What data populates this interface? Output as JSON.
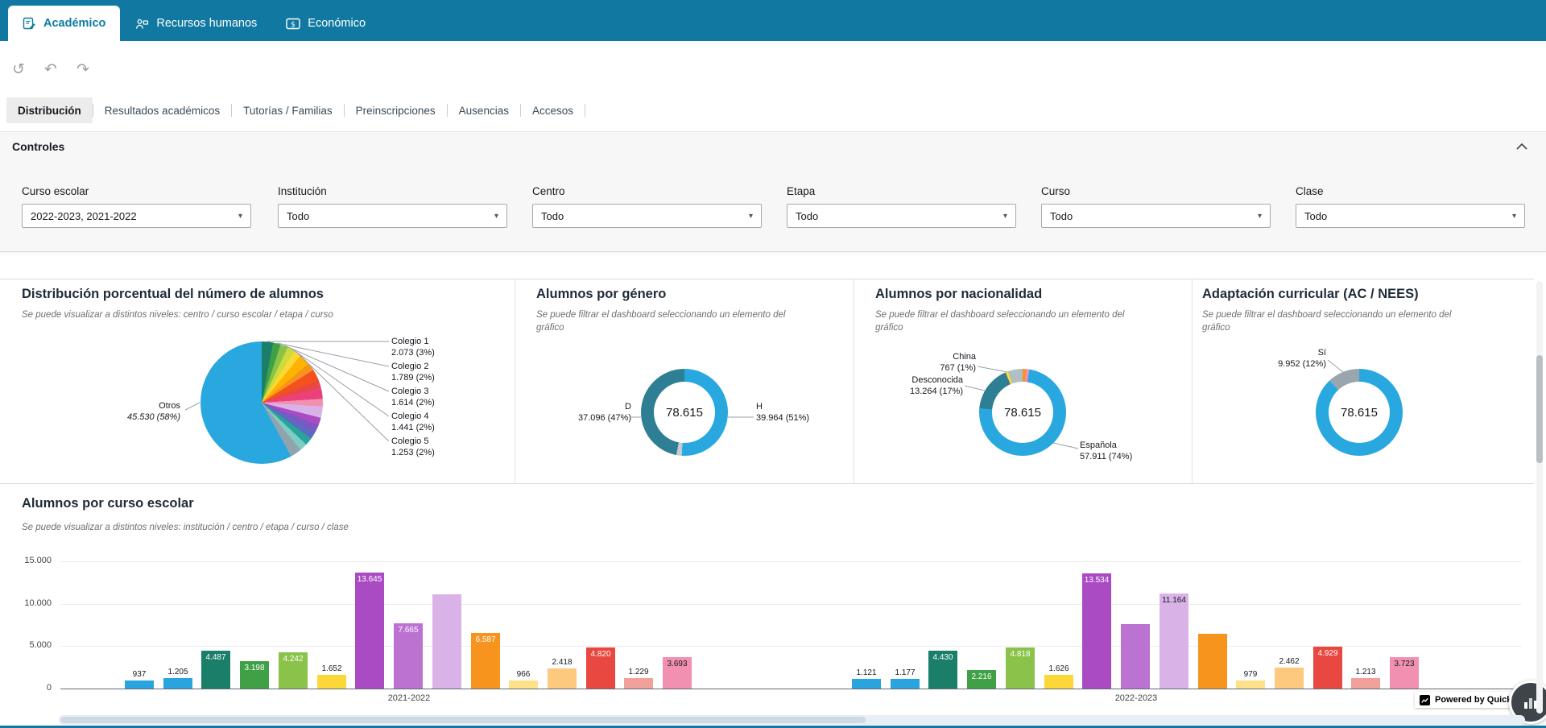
{
  "topbar": {
    "tabs": [
      {
        "label": "Académico",
        "active": true
      },
      {
        "label": "Recursos humanos",
        "active": false
      },
      {
        "label": "Económico",
        "active": false
      }
    ]
  },
  "sheet_tabs": [
    {
      "label": "Distribución",
      "active": true
    },
    {
      "label": "Resultados académicos",
      "active": false
    },
    {
      "label": "Tutorías / Familias",
      "active": false
    },
    {
      "label": "Preinscripciones",
      "active": false
    },
    {
      "label": "Ausencias",
      "active": false
    },
    {
      "label": "Accesos",
      "active": false
    }
  ],
  "controls": {
    "title": "Controles",
    "filters": [
      {
        "label": "Curso escolar",
        "value": "2022-2023, 2021-2022"
      },
      {
        "label": "Institución",
        "value": "Todo"
      },
      {
        "label": "Centro",
        "value": "Todo"
      },
      {
        "label": "Etapa",
        "value": "Todo"
      },
      {
        "label": "Curso",
        "value": "Todo"
      },
      {
        "label": "Clase",
        "value": "Todo"
      }
    ]
  },
  "footer": {
    "powered_by": "Powered by QuickSight"
  },
  "chart_data": [
    {
      "type": "pie",
      "title": "Distribución porcentual del número de alumnos",
      "subtitle": "Se puede visualizar a distintos niveles: centro / curso escolar / etapa / curso",
      "segments": [
        {
          "name": "Colegio 1",
          "value": 2073,
          "pct": 3,
          "display": "2.073 (3%)",
          "color": "#1B7E68"
        },
        {
          "name": "Colegio 2",
          "value": 1789,
          "pct": 2,
          "display": "1.789 (2%)",
          "color": "#3FA045"
        },
        {
          "name": "Colegio 3",
          "value": 1614,
          "pct": 2,
          "display": "1.614 (2%)",
          "color": "#8BC34A"
        },
        {
          "name": "Colegio 4",
          "value": 1441,
          "pct": 2,
          "display": "1.441 (2%)",
          "color": "#CDDC39"
        },
        {
          "name": "Colegio 5",
          "value": 1253,
          "pct": 2,
          "display": "1.253 (2%)",
          "color": "#FBD737"
        },
        {
          "pct": 3,
          "color": "#FFB300"
        },
        {
          "pct": 2,
          "color": "#F7941E"
        },
        {
          "pct": 3,
          "color": "#F4511E"
        },
        {
          "pct": 2,
          "color": "#E8483F"
        },
        {
          "pct": 3,
          "color": "#EC407A"
        },
        {
          "pct": 2,
          "color": "#F290B1"
        },
        {
          "pct": 3,
          "color": "#D9B2E8"
        },
        {
          "pct": 2,
          "color": "#AB4BC4"
        },
        {
          "pct": 2,
          "color": "#7E57C2"
        },
        {
          "pct": 2,
          "color": "#5C6BC0"
        },
        {
          "pct": 2,
          "color": "#26A69A"
        },
        {
          "pct": 2,
          "color": "#80CBC4"
        },
        {
          "pct": 3,
          "color": "#90A4AE"
        },
        {
          "name": "Otros",
          "value": 45530,
          "pct": 58,
          "display": "45.530 (58%)",
          "color": "#29A8E0"
        }
      ]
    },
    {
      "type": "donut",
      "title": "Alumnos por género",
      "subtitle": "Se puede filtrar el dashboard seleccionando un elemento del gráfico",
      "center_total": "78.615",
      "segments": [
        {
          "name": "H",
          "value": 39964,
          "pct": 51,
          "display": "39.964 (51%)",
          "color": "#29A8E0"
        },
        {
          "pct": 2,
          "color": "#C5CCD3"
        },
        {
          "name": "D",
          "value": 37096,
          "pct": 47,
          "display": "37.096 (47%)",
          "color": "#2E7F93"
        }
      ]
    },
    {
      "type": "donut",
      "title": "Alumnos por nacionalidad",
      "subtitle": "Se puede filtrar el dashboard seleccionando un elemento del gráfico",
      "center_total": "78.615",
      "segments": [
        {
          "pct": 1.2,
          "color": "#F7941E"
        },
        {
          "pct": 1.3,
          "color": "#F290B1"
        },
        {
          "name": "Española",
          "value": 57911,
          "pct": 74,
          "display": "57.911 (74%)",
          "color": "#29A8E0"
        },
        {
          "name": "Desconocida",
          "value": 13264,
          "pct": 17,
          "display": "13.264 (17%)",
          "color": "#2E7F93"
        },
        {
          "name": "China",
          "value": 767,
          "pct": 1,
          "display": "767 (1%)",
          "color": "#FBD737"
        },
        {
          "pct": 5.5,
          "color": "#B0BEC5"
        }
      ]
    },
    {
      "type": "donut",
      "title": "Adaptación curricular (AC / NEES)",
      "subtitle": "Se puede filtrar el dashboard seleccionando un elemento del gráfico",
      "center_total": "78.615",
      "segments": [
        {
          "pct": 88,
          "color": "#29A8E0"
        },
        {
          "name": "Sí",
          "value": 9952,
          "pct": 12,
          "display": "9.952 (12%)",
          "color": "#9AA5AD"
        }
      ]
    },
    {
      "type": "bar",
      "title": "Alumnos por curso escolar",
      "subtitle": "Se puede visualizar a distintos niveles: institución / centro / etapa / curso / clase",
      "ylim": [
        0,
        15000
      ],
      "y_ticks": [
        {
          "v": 15000,
          "label": "15.000"
        },
        {
          "v": 10000,
          "label": "10.000"
        },
        {
          "v": 5000,
          "label": "5.000"
        },
        {
          "v": 0,
          "label": "0"
        }
      ],
      "groups": [
        {
          "category": "2021-2022",
          "bars": [
            {
              "value": 937,
              "label": "937",
              "color": "#2AA4DE",
              "label_style": "out"
            },
            {
              "value": 1205,
              "label": "1.205",
              "color": "#2AA4DE",
              "label_style": "out"
            },
            {
              "value": 4487,
              "label": "4.487",
              "color": "#1B7E68",
              "label_style": "in-light"
            },
            {
              "value": 3198,
              "label": "3.198",
              "color": "#3FA045",
              "label_style": "in-light"
            },
            {
              "value": 4242,
              "label": "4.242",
              "color": "#8BC34A",
              "label_style": "in-light"
            },
            {
              "value": 1652,
              "label": "1.652",
              "color": "#FBD737",
              "label_style": "out"
            },
            {
              "value": 13645,
              "label": "13.645",
              "color": "#AB4BC4",
              "label_style": "in-light"
            },
            {
              "value": 7665,
              "label": "7.665",
              "color": "#BC72D0",
              "label_style": "in-light"
            },
            {
              "value": 11100,
              "label": "",
              "color": "#D9B2E8",
              "label_style": "none"
            },
            {
              "value": 6587,
              "label": "6.587",
              "color": "#F7941E",
              "label_style": "in-light"
            },
            {
              "value": 966,
              "label": "966",
              "color": "#FFE18A",
              "label_style": "out"
            },
            {
              "value": 2418,
              "label": "2.418",
              "color": "#FDC97E",
              "label_style": "out"
            },
            {
              "value": 4820,
              "label": "4.820",
              "color": "#E8483F",
              "label_style": "in-light"
            },
            {
              "value": 1229,
              "label": "1.229",
              "color": "#F2A19A",
              "label_style": "out"
            },
            {
              "value": 3693,
              "label": "3.693",
              "color": "#F290B1",
              "label_style": "in-dark"
            }
          ]
        },
        {
          "category": "2022-2023",
          "bars": [
            {
              "value": 1121,
              "label": "1.121",
              "color": "#2AA4DE",
              "label_style": "out"
            },
            {
              "value": 1177,
              "label": "1.177",
              "color": "#2AA4DE",
              "label_style": "out"
            },
            {
              "value": 4430,
              "label": "4.430",
              "color": "#1B7E68",
              "label_style": "in-light"
            },
            {
              "value": 2216,
              "label": "2.216",
              "color": "#3FA045",
              "label_style": "in-light"
            },
            {
              "value": 4818,
              "label": "4.818",
              "color": "#8BC34A",
              "label_style": "in-light"
            },
            {
              "value": 1626,
              "label": "1.626",
              "color": "#FBD737",
              "label_style": "out"
            },
            {
              "value": 13534,
              "label": "13.534",
              "color": "#AB4BC4",
              "label_style": "in-light"
            },
            {
              "value": 7600,
              "label": "",
              "color": "#BC72D0",
              "label_style": "none"
            },
            {
              "value": 11164,
              "label": "11.164",
              "color": "#D9B2E8",
              "label_style": "in-dark"
            },
            {
              "value": 6500,
              "label": "",
              "color": "#F7941E",
              "label_style": "none"
            },
            {
              "value": 979,
              "label": "979",
              "color": "#FFE18A",
              "label_style": "out"
            },
            {
              "value": 2462,
              "label": "2.462",
              "color": "#FDC97E",
              "label_style": "out"
            },
            {
              "value": 4929,
              "label": "4.929",
              "color": "#E8483F",
              "label_style": "in-light"
            },
            {
              "value": 1213,
              "label": "1.213",
              "color": "#F2A19A",
              "label_style": "out"
            },
            {
              "value": 3723,
              "label": "3.723",
              "color": "#F290B1",
              "label_style": "in-dark"
            }
          ]
        }
      ]
    }
  ]
}
